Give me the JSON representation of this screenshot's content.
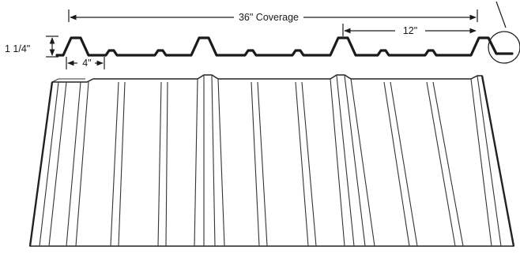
{
  "diagram": {
    "coverage_label": "36\" Coverage",
    "rib_spacing_label": "12\"",
    "height_label": "1 1/4\"",
    "minor_rib_label": "4\""
  },
  "colors": {
    "ink": "#1a1a1a",
    "background": "#ffffff"
  }
}
